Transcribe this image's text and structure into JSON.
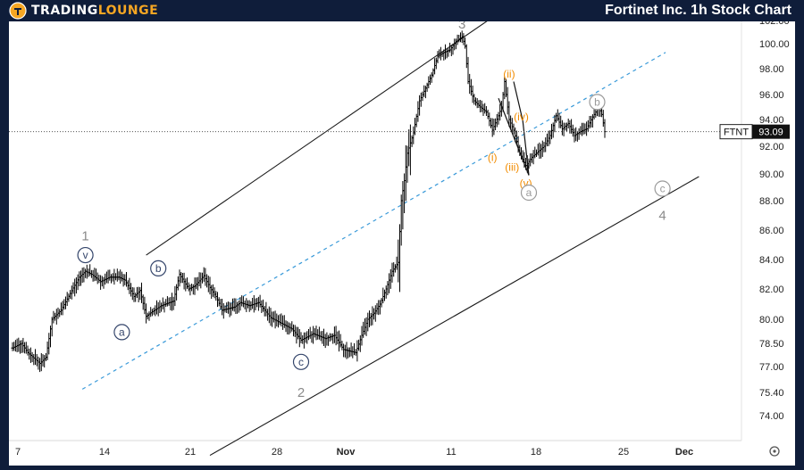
{
  "header": {
    "brand_part1": "TRADING",
    "brand_part2": "LOUNGE",
    "title": "Fortinet Inc. 1h Stock Chart"
  },
  "colors": {
    "background": "#0f1d3a",
    "accent": "#f5a623",
    "price_bars": "#000000",
    "channel": "#1a1a1a",
    "dashed_channel": "#3a9ad9",
    "wave_label": "#8a8a8a",
    "subwave_label": "#f28c00",
    "circle_wave": "#34456b"
  },
  "chart_data": {
    "type": "ohlc",
    "symbol": "FTNT",
    "last_price": 93.09,
    "last_price_label": "93.09",
    "y_axis": {
      "ticks": [
        74.0,
        75.4,
        77.0,
        78.5,
        80.0,
        82.0,
        84.0,
        86.0,
        88.0,
        90.0,
        92.0,
        94.0,
        96.0,
        98.0,
        100.0,
        102.0
      ],
      "tick_labels": [
        "74.00",
        "75.40",
        "77.00",
        "78.50",
        "80.00",
        "82.00",
        "84.00",
        "86.00",
        "88.00",
        "90.00",
        "92.00",
        "94.00",
        "96.00",
        "98.00",
        "100.00",
        "102.00"
      ]
    },
    "x_axis": {
      "tick_labels": [
        "7",
        "14",
        "21",
        "28",
        "Nov",
        "11",
        "18",
        "25",
        "Dec"
      ]
    },
    "price_path": [
      [
        0,
        78.2
      ],
      [
        6,
        78.5
      ],
      [
        10,
        77.9
      ],
      [
        18,
        77.2
      ],
      [
        22,
        77.6
      ],
      [
        26,
        80.0
      ],
      [
        32,
        80.6
      ],
      [
        38,
        81.7
      ],
      [
        44,
        82.8
      ],
      [
        48,
        83.2
      ],
      [
        52,
        83.0
      ],
      [
        58,
        82.5
      ],
      [
        64,
        82.8
      ],
      [
        70,
        82.8
      ],
      [
        74,
        82.6
      ],
      [
        80,
        81.5
      ],
      [
        84,
        81.9
      ],
      [
        88,
        80.2
      ],
      [
        92,
        80.5
      ],
      [
        98,
        80.9
      ],
      [
        106,
        81.2
      ],
      [
        110,
        83.0
      ],
      [
        116,
        82.0
      ],
      [
        120,
        82.2
      ],
      [
        126,
        82.9
      ],
      [
        130,
        82.1
      ],
      [
        134,
        81.5
      ],
      [
        138,
        80.6
      ],
      [
        146,
        80.8
      ],
      [
        150,
        81.1
      ],
      [
        156,
        80.9
      ],
      [
        162,
        81.1
      ],
      [
        170,
        80.1
      ],
      [
        176,
        79.8
      ],
      [
        184,
        79.4
      ],
      [
        190,
        78.7
      ],
      [
        198,
        79.1
      ],
      [
        206,
        78.8
      ],
      [
        212,
        79.0
      ],
      [
        218,
        78.1
      ],
      [
        226,
        77.9
      ],
      [
        230,
        79.0
      ],
      [
        234,
        80.0
      ],
      [
        238,
        80.4
      ],
      [
        242,
        81.0
      ],
      [
        246,
        82.0
      ],
      [
        250,
        83.2
      ],
      [
        254,
        83.8
      ],
      [
        256,
        88.0
      ],
      [
        258,
        89.5
      ],
      [
        260,
        91.5
      ],
      [
        264,
        93.0
      ],
      [
        268,
        95.5
      ],
      [
        272,
        96.5
      ],
      [
        276,
        97.5
      ],
      [
        280,
        99.0
      ],
      [
        284,
        99.3
      ],
      [
        288,
        99.5
      ],
      [
        292,
        100.2
      ],
      [
        296,
        100.6
      ],
      [
        298,
        99.8
      ],
      [
        300,
        97.0
      ],
      [
        304,
        95.5
      ],
      [
        308,
        95.0
      ],
      [
        312,
        94.6
      ],
      [
        316,
        93.2
      ],
      [
        320,
        94.3
      ],
      [
        322,
        95.0
      ],
      [
        324,
        97.0
      ],
      [
        327,
        94.0
      ],
      [
        330,
        93.2
      ],
      [
        334,
        91.5
      ],
      [
        338,
        90.6
      ],
      [
        342,
        91.2
      ],
      [
        346,
        91.6
      ],
      [
        350,
        92.0
      ],
      [
        354,
        92.8
      ],
      [
        358,
        94.3
      ],
      [
        362,
        93.3
      ],
      [
        366,
        93.7
      ],
      [
        370,
        92.8
      ],
      [
        374,
        93.1
      ],
      [
        378,
        93.3
      ],
      [
        382,
        94.2
      ],
      [
        386,
        95.0
      ],
      [
        388,
        94.4
      ],
      [
        390,
        93.09
      ]
    ],
    "channels": [
      {
        "style": "solid",
        "points": [
          [
            88,
            84.3
          ],
          [
            452,
            114.5
          ]
        ]
      },
      {
        "style": "solid",
        "points": [
          [
            130,
            71.6
          ],
          [
            452,
            89.8
          ]
        ]
      },
      {
        "style": "dashed",
        "points": [
          [
            46,
            75.6
          ],
          [
            430,
            99.3
          ]
        ]
      }
    ],
    "wave_lines": [
      [
        [
          320,
          95.7
        ],
        [
          340,
          89.9
        ]
      ],
      [
        [
          330,
          97.0
        ],
        [
          336,
          93.9
        ]
      ],
      [
        [
          336,
          93.9
        ],
        [
          340,
          89.9
        ]
      ]
    ],
    "labels": [
      {
        "text": "1",
        "x": 48,
        "y": 85.6,
        "style": "grey"
      },
      {
        "text": "v",
        "x": 48,
        "y": 84.3,
        "style": "circle"
      },
      {
        "text": "a",
        "x": 72,
        "y": 79.2,
        "style": "circle"
      },
      {
        "text": "b",
        "x": 96,
        "y": 83.4,
        "style": "circle"
      },
      {
        "text": "c",
        "x": 190,
        "y": 77.3,
        "style": "circle"
      },
      {
        "text": "2",
        "x": 190,
        "y": 75.4,
        "style": "grey"
      },
      {
        "text": "3",
        "x": 296,
        "y": 101.7,
        "style": "grey"
      },
      {
        "text": "(ii)",
        "x": 327,
        "y": 97.6,
        "style": "orange"
      },
      {
        "text": "(iv)",
        "x": 335,
        "y": 94.2,
        "style": "orange"
      },
      {
        "text": "(i)",
        "x": 316,
        "y": 91.2,
        "style": "orange"
      },
      {
        "text": "(iii)",
        "x": 329,
        "y": 90.5,
        "style": "orange"
      },
      {
        "text": "(v)",
        "x": 338,
        "y": 89.3,
        "style": "orange"
      },
      {
        "text": "a",
        "x": 340,
        "y": 88.6,
        "style": "circle-grey"
      },
      {
        "text": "b",
        "x": 385,
        "y": 95.4,
        "style": "circle-grey"
      },
      {
        "text": "c",
        "x": 428,
        "y": 88.9,
        "style": "circle-grey"
      },
      {
        "text": "4",
        "x": 428,
        "y": 87.0,
        "style": "grey"
      }
    ],
    "grid": false,
    "legend": "none"
  }
}
